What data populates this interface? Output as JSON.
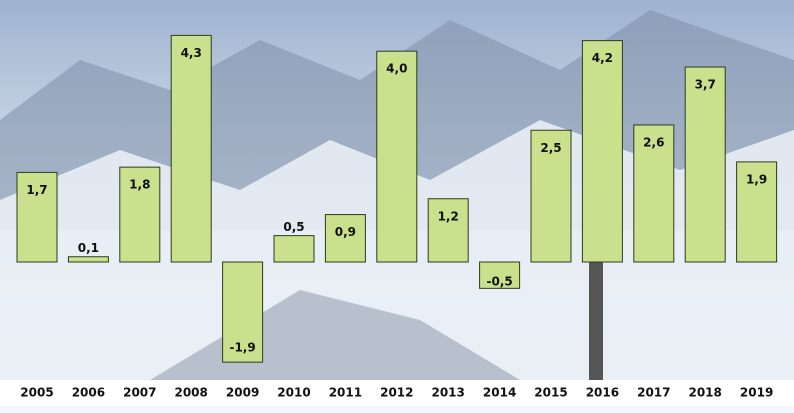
{
  "chart_data": {
    "type": "bar",
    "categories": [
      "2005",
      "2006",
      "2007",
      "2008",
      "2009",
      "2010",
      "2011",
      "2012",
      "2013",
      "2014",
      "2015",
      "2016",
      "2017",
      "2018",
      "2019"
    ],
    "values": [
      1.7,
      0.1,
      1.8,
      4.3,
      -1.9,
      0.5,
      0.9,
      4.0,
      1.2,
      -0.5,
      2.5,
      4.2,
      2.6,
      3.7,
      1.9
    ],
    "value_labels": [
      "1,7",
      "0,1",
      "1,8",
      "4,3",
      "-1,9",
      "0,5",
      "0,9",
      "4,0",
      "1,2",
      "-0,5",
      "2,5",
      "4,2",
      "2,6",
      "3,7",
      "1,9"
    ],
    "color": "#c9e08c"
  }
}
